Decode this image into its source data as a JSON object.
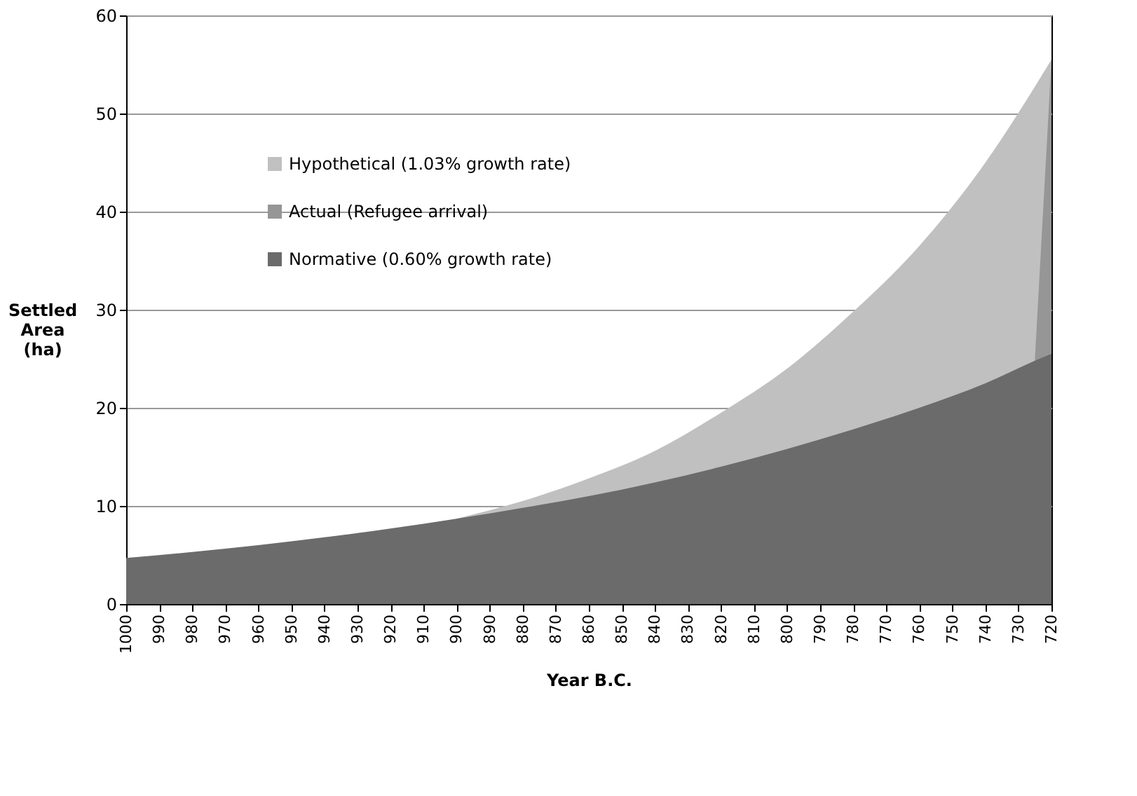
{
  "chart_data": {
    "type": "area",
    "xlabel": "Year B.C.",
    "ylabel": "Settled Area (ha)",
    "xlim": [
      1000,
      720
    ],
    "xticks": [
      1000,
      990,
      980,
      970,
      960,
      950,
      940,
      930,
      920,
      910,
      900,
      890,
      880,
      870,
      860,
      850,
      840,
      830,
      820,
      810,
      800,
      790,
      780,
      770,
      760,
      750,
      740,
      730,
      720
    ],
    "ylim": [
      0,
      60
    ],
    "yticks": [
      0,
      10,
      20,
      30,
      40,
      50,
      60
    ],
    "grid": "y",
    "legend": "top left",
    "series": [
      {
        "name": "Hypothetical (1.03% growth rate)",
        "color": "#c0c0c0",
        "x": [
          900,
          880,
          860,
          840,
          820,
          800,
          780,
          760,
          740,
          720
        ],
        "values": [
          8.7,
          10.5,
          12.8,
          15.6,
          19.5,
          24,
          29.8,
          36.5,
          45,
          55.5
        ]
      },
      {
        "name": "Actual (Refugee arrival)",
        "color": "#969696",
        "x": [
          725,
          720
        ],
        "values": [
          25.1,
          55.5
        ]
      },
      {
        "name": "Normative (0.60% growth rate)",
        "color": "#6b6b6b",
        "x": [
          1000,
          980,
          960,
          940,
          920,
          900,
          880,
          860,
          840,
          820,
          800,
          780,
          760,
          740,
          725,
          720
        ],
        "values": [
          4.7,
          5.3,
          6.0,
          6.8,
          7.7,
          8.7,
          9.8,
          11.0,
          12.4,
          14.0,
          15.8,
          17.8,
          20.0,
          22.5,
          24.8,
          25.5
        ]
      }
    ]
  }
}
